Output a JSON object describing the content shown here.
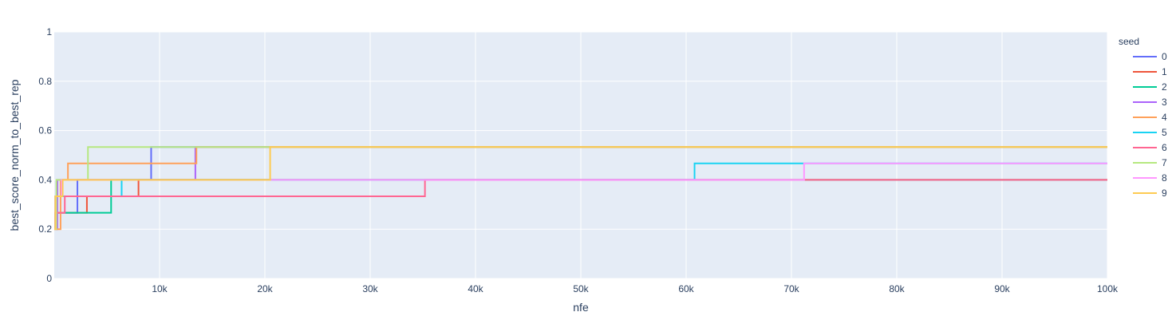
{
  "chart_data": {
    "type": "line",
    "line_shape": "step",
    "xlabel": "nfe",
    "ylabel": "best_score_norm_to_best_rep",
    "xlim": [
      0,
      100000
    ],
    "ylim": [
      0,
      1
    ],
    "x_tick_values": [
      10000,
      20000,
      30000,
      40000,
      50000,
      60000,
      70000,
      80000,
      90000,
      100000
    ],
    "x_tick_labels": [
      "10k",
      "20k",
      "30k",
      "40k",
      "50k",
      "60k",
      "70k",
      "80k",
      "90k",
      "100k"
    ],
    "y_tick_values": [
      0,
      0.2,
      0.4,
      0.6,
      0.8,
      1
    ],
    "y_tick_labels": [
      "0",
      "0.2",
      "0.4",
      "0.6",
      "0.8",
      "1"
    ],
    "grid": true,
    "plot_background": "#e5ecf6",
    "grid_color": "#ffffff",
    "legend": {
      "title": "seed",
      "placement": "right"
    },
    "series": [
      {
        "name": "0",
        "color": "#636efa",
        "x": [
          0,
          100,
          1000,
          2000,
          2200,
          9200,
          100000
        ],
        "y": [
          0.2,
          0.2667,
          0.2667,
          0.2667,
          0.4,
          0.5333,
          0.5333
        ]
      },
      {
        "name": "1",
        "color": "#EF553B",
        "x": [
          0,
          200,
          3100,
          8000,
          100000
        ],
        "y": [
          0.2,
          0.2667,
          0.3333,
          0.4,
          0.4
        ]
      },
      {
        "name": "2",
        "color": "#00cc96",
        "x": [
          0,
          100,
          5400,
          73500,
          100000
        ],
        "y": [
          0.2,
          0.2667,
          0.4,
          0.4,
          0.4
        ]
      },
      {
        "name": "3",
        "color": "#ab63fa",
        "x": [
          0,
          300,
          13200,
          13400,
          100000
        ],
        "y": [
          0.2,
          0.4,
          0.4,
          0.5333,
          0.5333
        ]
      },
      {
        "name": "4",
        "color": "#FFA15A",
        "x": [
          0,
          600,
          1300,
          13500,
          100000
        ],
        "y": [
          0.2,
          0.4,
          0.4667,
          0.5333,
          0.5333
        ]
      },
      {
        "name": "5",
        "color": "#19d3f3",
        "x": [
          0,
          100,
          6400,
          60800,
          100000
        ],
        "y": [
          0.2,
          0.3333,
          0.4,
          0.4667,
          0.4667
        ]
      },
      {
        "name": "6",
        "color": "#FF6692",
        "x": [
          0,
          100,
          1000,
          35200,
          100000
        ],
        "y": [
          0.2,
          0.2667,
          0.3333,
          0.4,
          0.4
        ]
      },
      {
        "name": "7",
        "color": "#B6E880",
        "x": [
          0,
          200,
          3200,
          100000
        ],
        "y": [
          0.2,
          0.4,
          0.5333,
          0.5333
        ]
      },
      {
        "name": "8",
        "color": "#FF97FF",
        "x": [
          0,
          100,
          700,
          71200,
          100000
        ],
        "y": [
          0.2,
          0.3333,
          0.4,
          0.4667,
          0.4667
        ]
      },
      {
        "name": "9",
        "color": "#FECB52",
        "x": [
          0,
          100,
          800,
          20500,
          100000
        ],
        "y": [
          0.2,
          0.3333,
          0.4,
          0.5333,
          0.5333
        ]
      }
    ]
  }
}
